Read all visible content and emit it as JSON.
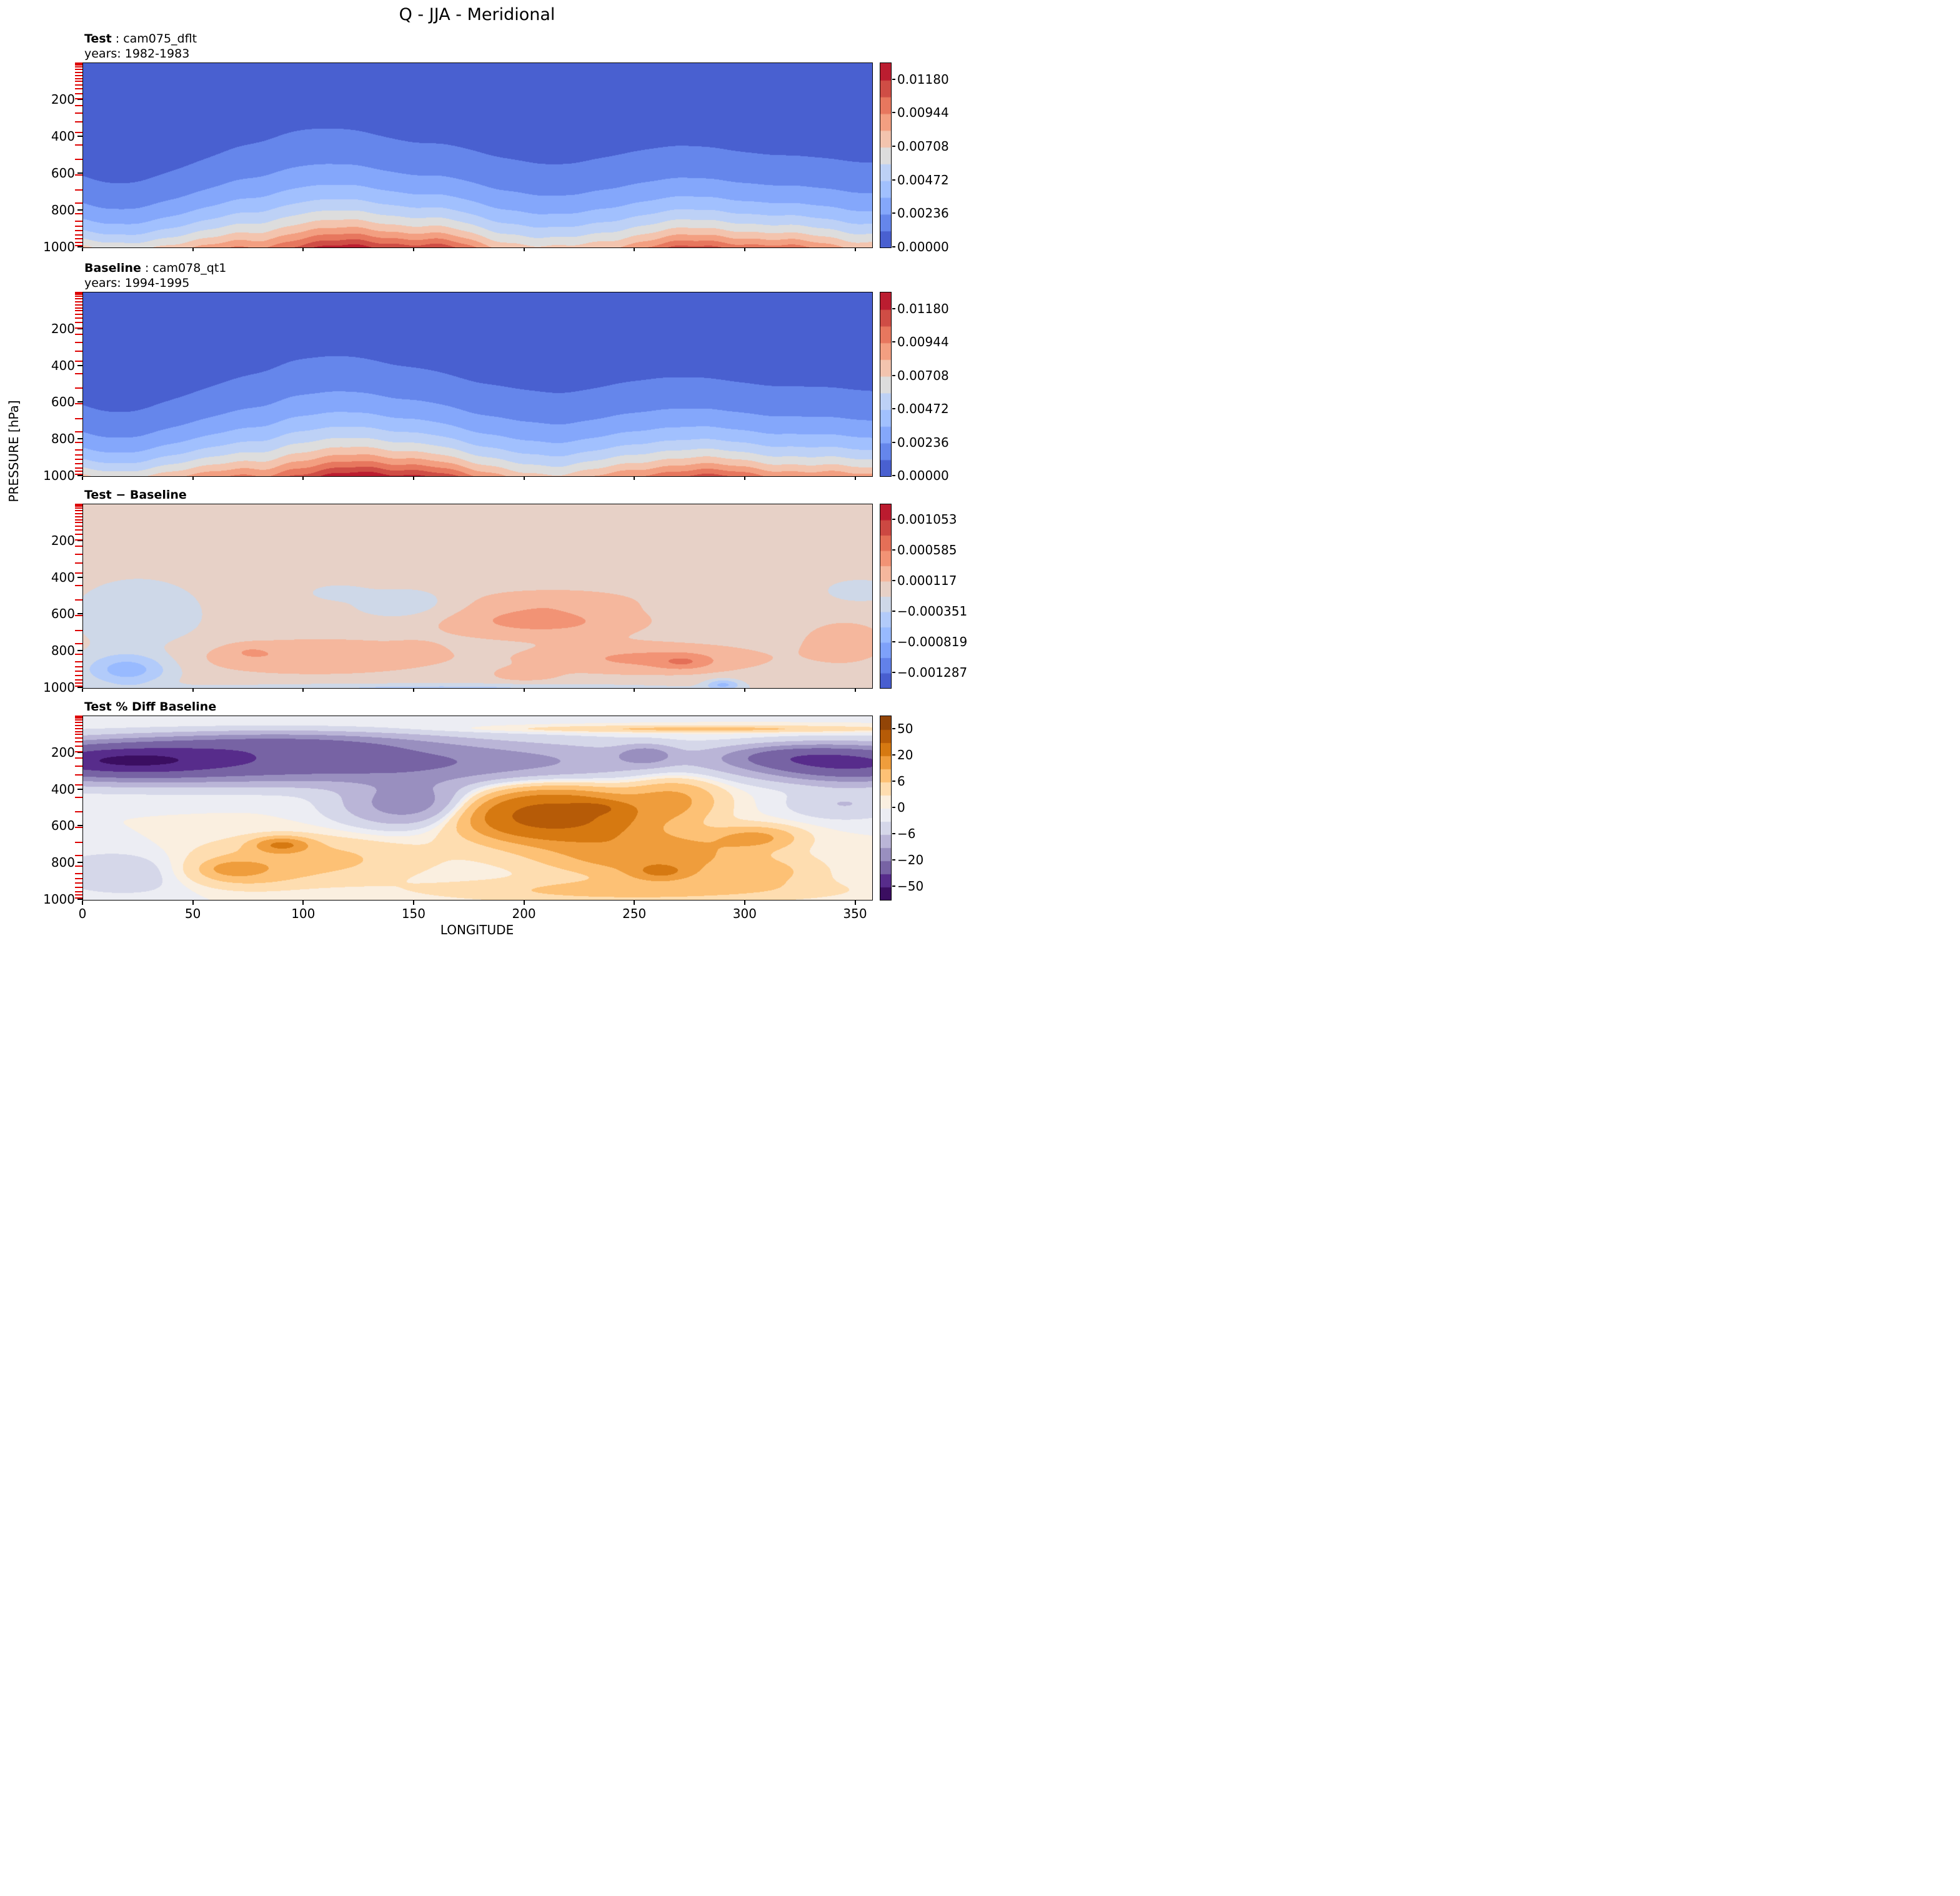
{
  "title": "Q - JJA - Meridional",
  "chart_data": {
    "type": "contourf",
    "x_axis": {
      "label": "LONGITUDE",
      "range": [
        0,
        357.5
      ],
      "ticks": [
        0,
        50,
        100,
        150,
        200,
        250,
        300,
        350
      ]
    },
    "y_axis": {
      "label": "PRESSURE [hPa]",
      "range": [
        0,
        1000
      ],
      "ticks": [
        200,
        400,
        600,
        800,
        1000
      ],
      "model_level_ticks": [
        3.6,
        7.6,
        14.4,
        24.6,
        38.3,
        54.6,
        72,
        87.8,
        103.3,
        121.5,
        142.9,
        168.2,
        197.9,
        232.8,
        273.9,
        322.2,
        379.1,
        445.9,
        524.7,
        609.8,
        691.4,
        763.4,
        820.8,
        859.5,
        887,
        912.6,
        936.2,
        957.5,
        976.3,
        992.6
      ],
      "model_level_tick_color": "#dd0000"
    },
    "colormaps": {
      "coolwarm": [
        "#3b4cc0",
        "#5977e3",
        "#7b9ff9",
        "#9bbcff",
        "#bad0f8",
        "#dddddd",
        "#f5c1a9",
        "#f39778",
        "#e36b54",
        "#c43c3c",
        "#b40426"
      ],
      "puor_r": [
        "#2d004b",
        "#542788",
        "#8073ac",
        "#b2abd2",
        "#d8daeb",
        "#f7f7f7",
        "#fee0b6",
        "#fdb863",
        "#e08214",
        "#b35806",
        "#7f3b08"
      ]
    },
    "panels": [
      {
        "name": "test",
        "heading": {
          "bold": "Test",
          "rest": " : cam075_dflt"
        },
        "subtitle": "years: 1982-1983",
        "colormap": "coolwarm",
        "levels": {
          "min": 0,
          "max": 0.01298,
          "step": 0.00118
        },
        "colorbar_ticks": [
          {
            "value": 0.0118,
            "label": "0.01180"
          },
          {
            "value": 0.00944,
            "label": "0.00944"
          },
          {
            "value": 0.00708,
            "label": "0.00708"
          },
          {
            "value": 0.00472,
            "label": "0.00472"
          },
          {
            "value": 0.00236,
            "label": "0.00236"
          },
          {
            "value": 0.0,
            "label": "0.00000"
          }
        ],
        "field": {
          "kind": "moisture",
          "q_base": 0.0082,
          "q_bumps": [
            [
              120,
              40,
              0.0038
            ],
            [
              165,
              15,
              0.0012
            ],
            [
              280,
              35,
              0.0022
            ],
            [
              330,
              22,
              0.001
            ],
            [
              15,
              22,
              -0.002
            ],
            [
              215,
              18,
              -0.0008
            ],
            [
              70,
              14,
              0.0008
            ],
            [
              95,
              10,
              0.0006
            ]
          ],
          "h_base": 235,
          "h_bumps": [
            [
              105,
              45,
              45
            ],
            [
              260,
              40,
              20
            ],
            [
              20,
              30,
              -30
            ],
            [
              180,
              30,
              15
            ]
          ],
          "wiggles": [
            [
              0.12,
              0.035,
              0.5
            ],
            [
              0.045,
              0.05,
              1.2
            ],
            [
              0.35,
              0.018,
              2.0
            ]
          ]
        }
      },
      {
        "name": "baseline",
        "heading": {
          "bold": "Baseline",
          "rest": " : cam078_qt1"
        },
        "subtitle": "years: 1994-1995",
        "colormap": "coolwarm",
        "levels": {
          "min": 0,
          "max": 0.01298,
          "step": 0.00118
        },
        "colorbar_ticks": [
          {
            "value": 0.0118,
            "label": "0.01180"
          },
          {
            "value": 0.00944,
            "label": "0.00944"
          },
          {
            "value": 0.00708,
            "label": "0.00708"
          },
          {
            "value": 0.00472,
            "label": "0.00472"
          },
          {
            "value": 0.00236,
            "label": "0.00236"
          },
          {
            "value": 0.0,
            "label": "0.00000"
          }
        ],
        "field": {
          "kind": "moisture",
          "q_base": 0.0084,
          "q_bumps": [
            [
              122,
              38,
              0.004
            ],
            [
              158,
              15,
              0.0014
            ],
            [
              278,
              35,
              0.002
            ],
            [
              332,
              22,
              0.0011
            ],
            [
              15,
              22,
              -0.0021
            ],
            [
              218,
              18,
              -0.0007
            ],
            [
              70,
              14,
              0.0007
            ],
            [
              95,
              10,
              0.0007
            ]
          ],
          "h_base": 232,
          "h_bumps": [
            [
              108,
              45,
              48
            ],
            [
              258,
              40,
              18
            ],
            [
              20,
              30,
              -28
            ],
            [
              182,
              30,
              14
            ]
          ],
          "wiggles": [
            [
              0.11,
              0.035,
              1.0
            ],
            [
              0.05,
              0.05,
              0.3
            ],
            [
              0.33,
              0.018,
              2.5
            ]
          ]
        }
      },
      {
        "name": "diff",
        "heading": {
          "bold": "Test − Baseline",
          "rest": ""
        },
        "subtitle": "",
        "colormap": "coolwarm",
        "levels": {
          "min": -0.001521,
          "max": 0.001287,
          "step": 0.000234
        },
        "colorbar_ticks": [
          {
            "value": 0.001053,
            "label": "0.001053"
          },
          {
            "value": 0.000585,
            "label": "0.000585"
          },
          {
            "value": 0.000117,
            "label": "0.000117"
          },
          {
            "value": -0.000351,
            "label": "−0.000351"
          },
          {
            "value": -0.000819,
            "label": "−0.000819"
          },
          {
            "value": -0.001287,
            "label": "−0.001287"
          }
        ],
        "field": {
          "kind": "blobs",
          "base": 0,
          "blobs": [
            [
              20,
              20,
              900,
              90,
              -0.0007
            ],
            [
              25,
              30,
              600,
              200,
              -0.0003
            ],
            [
              145,
              25,
              550,
              90,
              -0.00035
            ],
            [
              115,
              12,
              480,
              40,
              -0.00025
            ],
            [
              352,
              15,
              470,
              60,
              -0.0003
            ],
            [
              160,
              110,
              1000,
              25,
              -0.0004
            ],
            [
              290,
              8,
              980,
              30,
              -0.0006
            ],
            [
              105,
              55,
              830,
              90,
              0.00035
            ],
            [
              75,
              10,
              800,
              40,
              0.00015
            ],
            [
              150,
              10,
              790,
              40,
              0.00015
            ],
            [
              210,
              40,
              650,
              80,
              0.0003
            ],
            [
              215,
              35,
              520,
              60,
              0.0002
            ],
            [
              255,
              50,
              840,
              80,
              0.0004
            ],
            [
              272,
              12,
              860,
              40,
              0.0003
            ],
            [
              345,
              20,
              750,
              120,
              0.00025
            ],
            [
              200,
              15,
              930,
              40,
              0.0002
            ],
            [
              190,
              60,
              600,
              100,
              0.00018
            ]
          ]
        }
      },
      {
        "name": "pct-diff",
        "heading": {
          "bold": "Test % Diff Baseline",
          "rest": ""
        },
        "subtitle": "",
        "colormap": "puor_r",
        "levels": [
          -80,
          -50,
          -35,
          -20,
          -12,
          -6,
          -2,
          0,
          2,
          6,
          12,
          20,
          35,
          50,
          80
        ],
        "colorbar_ticks": [
          {
            "value": 50,
            "label": "50"
          },
          {
            "value": 20,
            "label": "20"
          },
          {
            "value": 6,
            "label": "6"
          },
          {
            "value": 0,
            "label": "0"
          },
          {
            "value": -6,
            "label": "−6"
          },
          {
            "value": -20,
            "label": "−20"
          },
          {
            "value": -50,
            "label": "−50"
          }
        ],
        "field": {
          "kind": "blobs",
          "base": 0,
          "blobs": [
            [
              80,
              150,
              250,
              110,
              -28
            ],
            [
              20,
              45,
              240,
              80,
              -30
            ],
            [
              350,
              40,
              260,
              90,
              -35
            ],
            [
              320,
              30,
              220,
              60,
              -15
            ],
            [
              90,
              60,
              150,
              60,
              -15
            ],
            [
              150,
              30,
              480,
              120,
              -18
            ],
            [
              255,
              12,
              210,
              50,
              -12
            ],
            [
              20,
              35,
              850,
              120,
              -5
            ],
            [
              345,
              25,
              480,
              80,
              -6
            ],
            [
              212,
              38,
              540,
              130,
              45
            ],
            [
              232,
              10,
              500,
              30,
              15
            ],
            [
              268,
              20,
              450,
              120,
              12
            ],
            [
              255,
              45,
              750,
              120,
              18
            ],
            [
              262,
              14,
              850,
              45,
              14
            ],
            [
              90,
              12,
              700,
              40,
              18
            ],
            [
              100,
              50,
              780,
              120,
              8
            ],
            [
              70,
              25,
              850,
              80,
              8
            ],
            [
              68,
              10,
              830,
              35,
              8
            ],
            [
              305,
              18,
              660,
              60,
              12
            ],
            [
              310,
              25,
              850,
              80,
              6
            ],
            [
              250,
              80,
              950,
              60,
              8
            ],
            [
              280,
              80,
              70,
              18,
              8
            ]
          ]
        }
      }
    ]
  }
}
